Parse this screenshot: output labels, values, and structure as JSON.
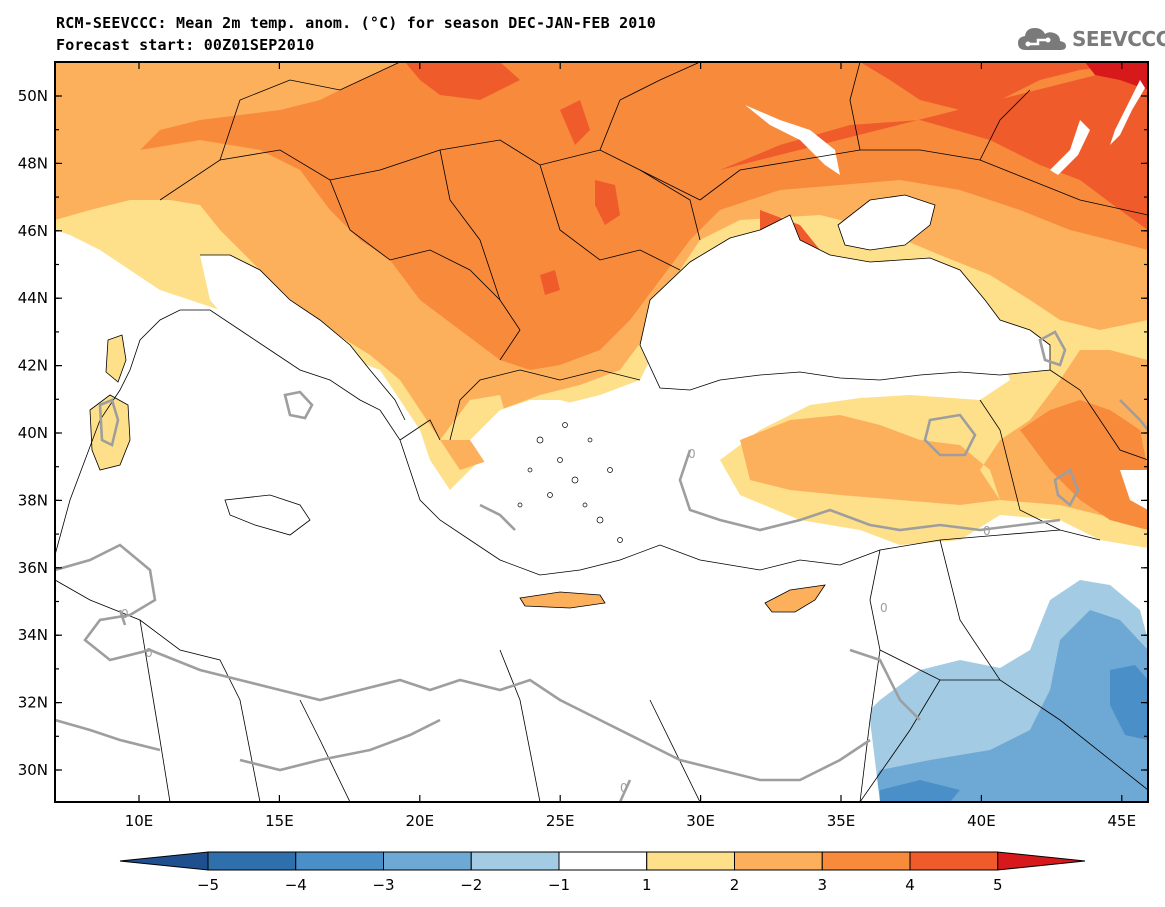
{
  "header": {
    "title": "RCM-SEEVCCC: Mean 2m temp. anom. (°C) for season DEC-JAN-FEB 2010",
    "subtitle": "Forecast start: 00Z01SEP2010"
  },
  "logo": {
    "text": "SEEVCCC",
    "icon": "cloud-icon"
  },
  "map": {
    "lat_ticks": [
      "50N",
      "48N",
      "46N",
      "44N",
      "42N",
      "40N",
      "38N",
      "36N",
      "34N",
      "32N",
      "30N"
    ],
    "lon_ticks": [
      "10E",
      "15E",
      "20E",
      "25E",
      "30E",
      "35E",
      "40E",
      "45E"
    ],
    "contour_label": "0"
  },
  "colorbar": {
    "labels": [
      "−5",
      "−4",
      "−3",
      "−2",
      "−1",
      "1",
      "2",
      "3",
      "4",
      "5"
    ],
    "colors": [
      "#1f4f8f",
      "#2f6fac",
      "#4b8fc8",
      "#6ea8d5",
      "#a3cce4",
      "#ffffff",
      "#fee08b",
      "#fdb05c",
      "#f88a3c",
      "#f05b2c",
      "#d7191c"
    ]
  }
}
